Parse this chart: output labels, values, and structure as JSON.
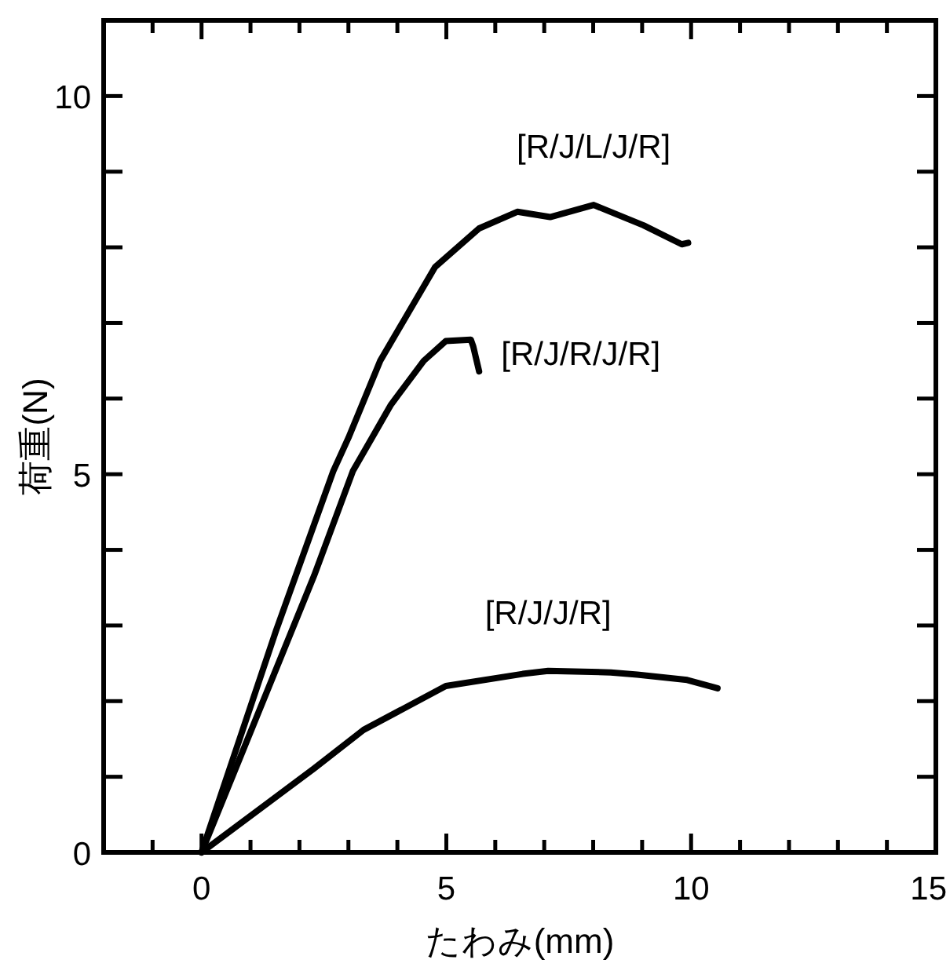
{
  "chart_data": {
    "type": "line",
    "xlabel": "たわみ(mm)",
    "ylabel": "荷重(N)",
    "xlim": [
      -2,
      15
    ],
    "ylim": [
      0,
      11
    ],
    "xticks": [
      {
        "value": -1,
        "label": null
      },
      0,
      {
        "value": 1,
        "label": null
      },
      {
        "value": 2,
        "label": null
      },
      {
        "value": 3,
        "label": null
      },
      {
        "value": 4,
        "label": null
      },
      5,
      {
        "value": 6,
        "label": null
      },
      {
        "value": 7,
        "label": null
      },
      {
        "value": 8,
        "label": null
      },
      {
        "value": 9,
        "label": null
      },
      10,
      {
        "value": 11,
        "label": null
      },
      {
        "value": 12,
        "label": null
      },
      {
        "value": 13,
        "label": null
      },
      {
        "value": 14,
        "label": null
      },
      15
    ],
    "yticks": [
      0,
      {
        "value": 1,
        "label": null
      },
      {
        "value": 2,
        "label": null
      },
      {
        "value": 3,
        "label": null
      },
      {
        "value": 4,
        "label": null
      },
      5,
      {
        "value": 6,
        "label": null
      },
      {
        "value": 7,
        "label": null
      },
      {
        "value": 8,
        "label": null
      },
      {
        "value": 9,
        "label": null
      },
      10
    ],
    "grid": false,
    "marker": "none",
    "line_style": "solid",
    "series": [
      {
        "name": "[R/J/L/J/R]",
        "color": "#000000",
        "x": [
          0,
          1.52,
          2.69,
          3.0,
          3.65,
          4.77,
          5.67,
          6.45,
          7.12,
          8.01,
          9.03,
          9.81,
          9.94
        ],
        "values": [
          0,
          2.93,
          5.04,
          5.48,
          6.5,
          7.74,
          8.25,
          8.47,
          8.4,
          8.56,
          8.29,
          8.04,
          8.06
        ]
      },
      {
        "name": "[R/J/R/J/R]",
        "color": "#000000",
        "x": [
          0,
          2.3,
          3.09,
          3.48,
          3.87,
          4.54,
          4.99,
          5.5,
          5.55,
          5.67
        ],
        "values": [
          0,
          3.66,
          5.04,
          5.48,
          5.92,
          6.5,
          6.76,
          6.78,
          6.69,
          6.36
        ]
      },
      {
        "name": "[R/J/J/R]",
        "color": "#000000",
        "x": [
          0,
          2.3,
          3.31,
          4.99,
          6.56,
          7.08,
          8.36,
          8.9,
          9.92,
          10.54
        ],
        "values": [
          0,
          1.11,
          1.62,
          2.2,
          2.36,
          2.4,
          2.38,
          2.35,
          2.28,
          2.17
        ]
      }
    ]
  }
}
